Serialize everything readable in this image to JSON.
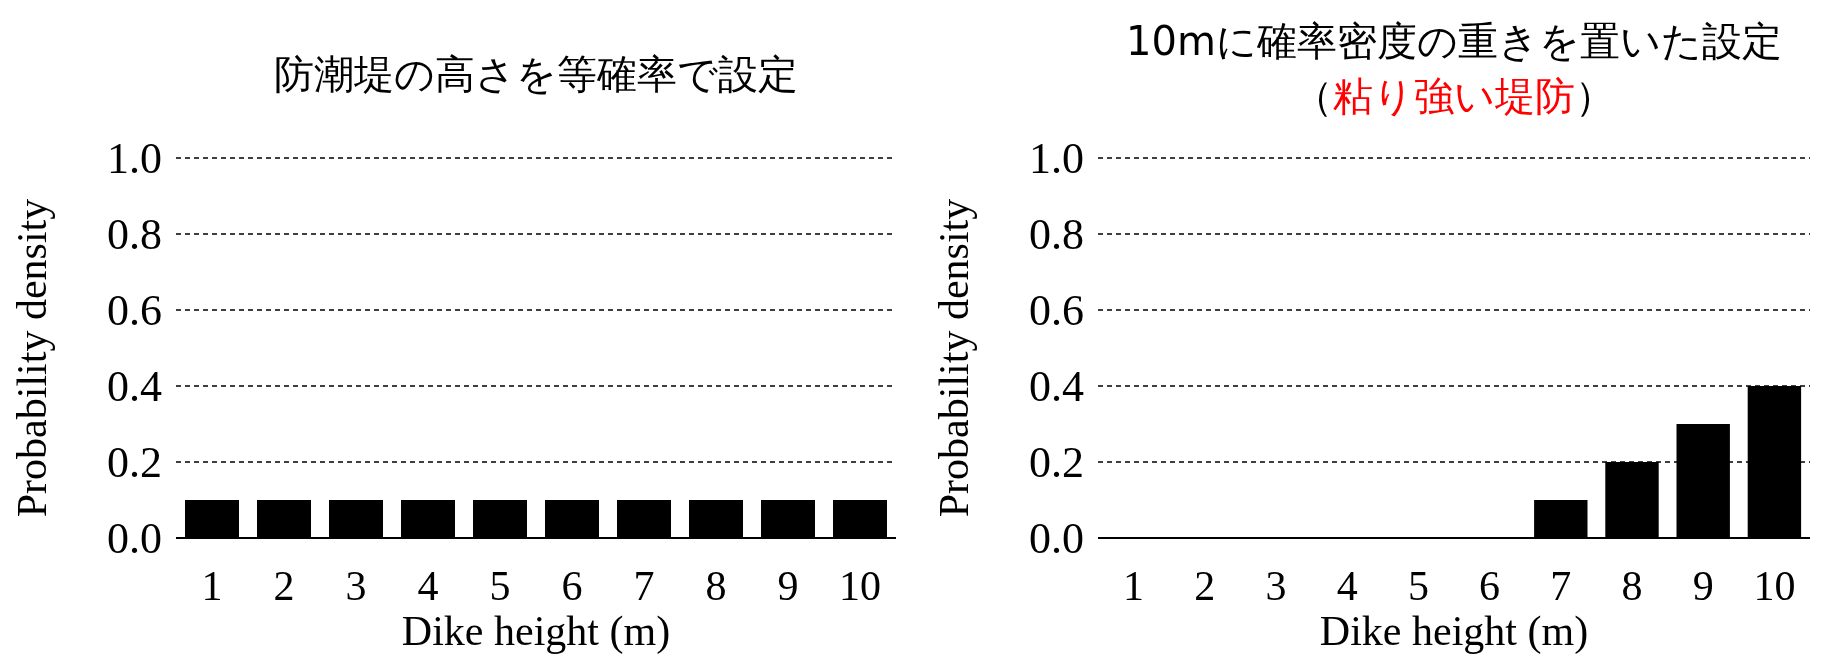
{
  "chart_data": [
    {
      "type": "bar",
      "title": "防潮堤の高さを等確率で設定",
      "xlabel": "Dike height (m)",
      "ylabel": "Probability density",
      "categories": [
        "1",
        "2",
        "3",
        "4",
        "5",
        "6",
        "7",
        "8",
        "9",
        "10"
      ],
      "values": [
        0.1,
        0.1,
        0.1,
        0.1,
        0.1,
        0.1,
        0.1,
        0.1,
        0.1,
        0.1
      ],
      "color": "#000000",
      "ylim": [
        0,
        1
      ],
      "yticks": [
        {
          "value": 0,
          "label": "0.0"
        },
        {
          "value": 0.2,
          "label": "0.2"
        },
        {
          "value": 0.4,
          "label": "0.4"
        },
        {
          "value": 0.6,
          "label": "0.6"
        },
        {
          "value": 0.8,
          "label": "0.8"
        },
        {
          "value": 1,
          "label": "1.0"
        }
      ],
      "grid": "y"
    },
    {
      "type": "bar",
      "title": "10mに確率密度の重きを置いた設定",
      "subtitle": "（粘り強い堤防）",
      "xlabel": "Dike height (m)",
      "ylabel": "Probability density",
      "categories": [
        "1",
        "2",
        "3",
        "4",
        "5",
        "6",
        "7",
        "8",
        "9",
        "10"
      ],
      "values": [
        0,
        0,
        0,
        0,
        0,
        0,
        0.1,
        0.2,
        0.3,
        0.4
      ],
      "color": "#000000",
      "ylim": [
        0,
        1
      ],
      "yticks": [
        {
          "value": 0,
          "label": "0.0"
        },
        {
          "value": 0.2,
          "label": "0.2"
        },
        {
          "value": 0.4,
          "label": "0.4"
        },
        {
          "value": 0.6,
          "label": "0.6"
        },
        {
          "value": 0.8,
          "label": "0.8"
        },
        {
          "value": 1,
          "label": "1.0"
        }
      ],
      "grid": "y"
    }
  ]
}
